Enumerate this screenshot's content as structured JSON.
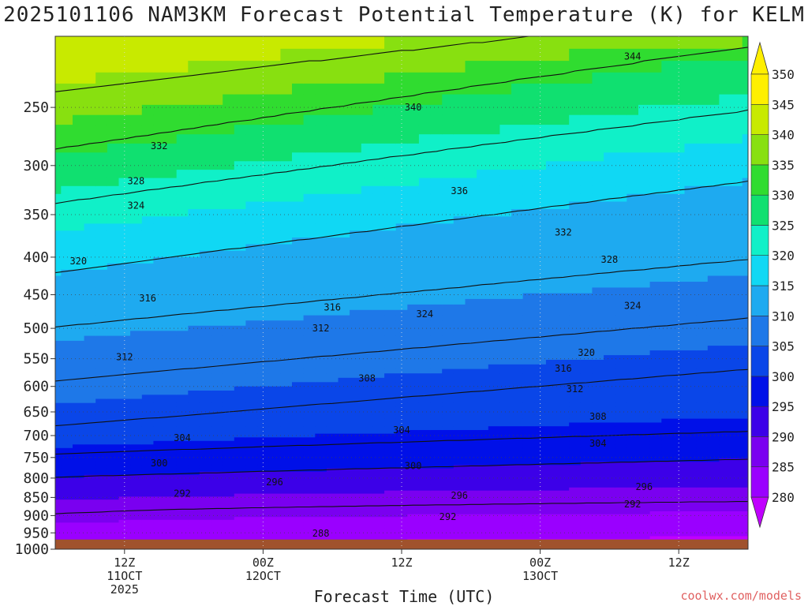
{
  "chart_data": {
    "type": "heatmap",
    "title": "2025101106 NAM3KM Forecast Potential Temperature (K) for KELM",
    "xlabel": "Forecast Time (UTC)",
    "ylabel": "",
    "credit": "coolwx.com/models",
    "y_axis": {
      "scale": "pressure-log",
      "range": [
        1000,
        200
      ],
      "ticks": [
        250,
        300,
        350,
        400,
        450,
        500,
        550,
        600,
        650,
        700,
        750,
        800,
        850,
        900,
        950,
        1000
      ]
    },
    "x_axis": {
      "range_hours": [
        0,
        60
      ],
      "ticks": [
        {
          "hour": 6,
          "lines": [
            "12Z",
            "11OCT",
            "2025"
          ]
        },
        {
          "hour": 18,
          "lines": [
            "00Z",
            "12OCT"
          ]
        },
        {
          "hour": 30,
          "lines": [
            "12Z"
          ]
        },
        {
          "hour": 42,
          "lines": [
            "00Z",
            "13OCT"
          ]
        },
        {
          "hour": 54,
          "lines": [
            "12Z"
          ]
        }
      ]
    },
    "colorbar": {
      "levels": [
        280,
        285,
        290,
        295,
        300,
        305,
        310,
        315,
        320,
        325,
        330,
        335,
        340,
        345,
        350
      ],
      "colors": [
        "#c000ff",
        "#9a00ff",
        "#7a00f0",
        "#3c00e8",
        "#0010e8",
        "#0a46e8",
        "#1e78e8",
        "#1eaaf0",
        "#10d8f4",
        "#10f0c8",
        "#10e070",
        "#30dc30",
        "#88e010",
        "#c8ea00",
        "#ffef00"
      ],
      "ground_color": "#a0522d"
    },
    "contour_labels": [
      {
        "value": 344,
        "hour": 50,
        "p": 213
      },
      {
        "value": 340,
        "hour": 31,
        "p": 250
      },
      {
        "value": 336,
        "hour": 35,
        "p": 325
      },
      {
        "value": 332,
        "hour": 9,
        "p": 282
      },
      {
        "value": 332,
        "hour": 44,
        "p": 370
      },
      {
        "value": 328,
        "hour": 7,
        "p": 315
      },
      {
        "value": 328,
        "hour": 48,
        "p": 403
      },
      {
        "value": 324,
        "hour": 7,
        "p": 340
      },
      {
        "value": 324,
        "hour": 32,
        "p": 478
      },
      {
        "value": 324,
        "hour": 50,
        "p": 466
      },
      {
        "value": 320,
        "hour": 2,
        "p": 405
      },
      {
        "value": 320,
        "hour": 46,
        "p": 540
      },
      {
        "value": 316,
        "hour": 8,
        "p": 455
      },
      {
        "value": 316,
        "hour": 24,
        "p": 468
      },
      {
        "value": 316,
        "hour": 44,
        "p": 567
      },
      {
        "value": 312,
        "hour": 23,
        "p": 500
      },
      {
        "value": 312,
        "hour": 6,
        "p": 547
      },
      {
        "value": 312,
        "hour": 45,
        "p": 605
      },
      {
        "value": 308,
        "hour": 27,
        "p": 585
      },
      {
        "value": 308,
        "hour": 47,
        "p": 660
      },
      {
        "value": 304,
        "hour": 11,
        "p": 705
      },
      {
        "value": 304,
        "hour": 30,
        "p": 688
      },
      {
        "value": 304,
        "hour": 47,
        "p": 718
      },
      {
        "value": 300,
        "hour": 9,
        "p": 763
      },
      {
        "value": 300,
        "hour": 31,
        "p": 770
      },
      {
        "value": 296,
        "hour": 19,
        "p": 810
      },
      {
        "value": 296,
        "hour": 35,
        "p": 845
      },
      {
        "value": 296,
        "hour": 51,
        "p": 822
      },
      {
        "value": 292,
        "hour": 11,
        "p": 840
      },
      {
        "value": 292,
        "hour": 34,
        "p": 903
      },
      {
        "value": 292,
        "hour": 50,
        "p": 868
      },
      {
        "value": 288,
        "hour": 23,
        "p": 952
      }
    ],
    "isentropes": [
      {
        "value": 292,
        "p": [
          895,
          893,
          892,
          891,
          890,
          888,
          887,
          886,
          885,
          884,
          883,
          882,
          882,
          881,
          880,
          880,
          879,
          878,
          878,
          877,
          877,
          876,
          876,
          875,
          875,
          874,
          874,
          873,
          873,
          872,
          872,
          871,
          871,
          870,
          870,
          870,
          869,
          869,
          868,
          868,
          868,
          867,
          867,
          866,
          866,
          866,
          865,
          865,
          865,
          864,
          864,
          864,
          863,
          863,
          863,
          862,
          862,
          862,
          862,
          861,
          861
        ]
      },
      {
        "value": 300,
        "p": [
          798,
          797,
          796,
          795,
          794,
          794,
          793,
          792,
          791,
          790,
          790,
          789,
          788,
          787,
          787,
          786,
          785,
          784,
          783,
          783,
          782,
          781,
          780,
          780,
          779,
          778,
          777,
          777,
          776,
          775,
          775,
          774,
          773,
          772,
          772,
          771,
          770,
          770,
          769,
          768,
          767,
          767,
          766,
          765,
          765,
          764,
          763,
          763,
          762,
          761,
          761,
          760,
          759,
          759,
          758,
          757,
          757,
          756,
          755,
          755,
          754
        ]
      },
      {
        "value": 304,
        "p": [
          742,
          741,
          740,
          739,
          738,
          737,
          736,
          735,
          734,
          733,
          732,
          731,
          731,
          730,
          729,
          728,
          727,
          726,
          725,
          724,
          723,
          722,
          722,
          721,
          720,
          719,
          718,
          717,
          716,
          716,
          715,
          714,
          713,
          712,
          711,
          711,
          710,
          709,
          708,
          707,
          706,
          706,
          705,
          704,
          703,
          702,
          702,
          701,
          700,
          699,
          698,
          698,
          697,
          696,
          695,
          695,
          694,
          693,
          692,
          692,
          691
        ]
      },
      {
        "value": 308,
        "p": [
          679,
          677,
          675,
          673,
          671,
          669,
          667,
          665,
          663,
          662,
          660,
          658,
          656,
          654,
          652,
          650,
          648,
          646,
          644,
          642,
          640,
          638,
          636,
          634,
          633,
          631,
          629,
          627,
          625,
          623,
          621,
          619,
          618,
          616,
          614,
          612,
          610,
          609,
          607,
          605,
          603,
          601,
          600,
          598,
          596,
          594,
          593,
          591,
          589,
          587,
          586,
          584,
          582,
          580,
          579,
          577,
          575,
          574,
          572,
          570,
          569
        ]
      },
      {
        "value": 312,
        "p": [
          590,
          588,
          586,
          584,
          582,
          580,
          578,
          576,
          574,
          572,
          570,
          568,
          567,
          565,
          563,
          561,
          559,
          557,
          555,
          554,
          552,
          550,
          548,
          546,
          545,
          543,
          541,
          539,
          538,
          536,
          534,
          532,
          531,
          529,
          527,
          525,
          524,
          522,
          520,
          519,
          517,
          515,
          514,
          512,
          510,
          509,
          507,
          505,
          504,
          502,
          500,
          499,
          497,
          496,
          494,
          492,
          491,
          489,
          488,
          486,
          484
        ]
      },
      {
        "value": 316,
        "p": [
          498,
          496,
          494,
          493,
          491,
          489,
          487,
          485,
          484,
          482,
          480,
          478,
          477,
          475,
          473,
          472,
          470,
          468,
          467,
          465,
          463,
          462,
          460,
          458,
          457,
          455,
          454,
          452,
          450,
          449,
          447,
          446,
          444,
          443,
          441,
          440,
          438,
          436,
          435,
          433,
          432,
          430,
          429,
          427,
          426,
          424,
          423,
          421,
          420,
          418,
          417,
          416,
          414,
          413,
          411,
          410,
          408,
          407,
          406,
          404,
          403
        ]
      },
      {
        "value": 320,
        "p": [
          420,
          418,
          416,
          414,
          412,
          410,
          408,
          406,
          404,
          402,
          400,
          398,
          396,
          394,
          392,
          390,
          389,
          387,
          385,
          383,
          381,
          379,
          378,
          376,
          374,
          372,
          370,
          369,
          367,
          365,
          363,
          362,
          360,
          358,
          356,
          355,
          353,
          351,
          350,
          348,
          346,
          345,
          343,
          341,
          340,
          338,
          337,
          335,
          333,
          332,
          330,
          329,
          327,
          326,
          324,
          323,
          321,
          320,
          318,
          317,
          315
        ]
      },
      {
        "value": 328,
        "p": [
          338,
          336,
          334,
          333,
          331,
          329,
          328,
          326,
          324,
          323,
          321,
          320,
          318,
          316,
          315,
          313,
          312,
          310,
          309,
          307,
          306,
          304,
          303,
          301,
          300,
          298,
          297,
          295,
          294,
          292,
          291,
          290,
          288,
          287,
          285,
          284,
          283,
          281,
          280,
          279,
          277,
          276,
          275,
          273,
          272,
          271,
          270,
          268,
          267,
          266,
          265,
          263,
          262,
          261,
          260,
          258,
          257,
          256,
          255,
          254,
          252
        ]
      },
      {
        "value": 336,
        "p": [
          285,
          283,
          282,
          280,
          279,
          277,
          276,
          274,
          273,
          271,
          270,
          268,
          267,
          265,
          264,
          262,
          261,
          260,
          258,
          257,
          255,
          254,
          253,
          251,
          250,
          249,
          247,
          246,
          245,
          243,
          242,
          241,
          239,
          238,
          237,
          236,
          234,
          233,
          232,
          231,
          229,
          228,
          227,
          226,
          225,
          223,
          222,
          221,
          220,
          219,
          218,
          216,
          215,
          214,
          213,
          212,
          211,
          210,
          209,
          208,
          207
        ]
      },
      {
        "value": 344,
        "p": [
          238,
          237,
          236,
          235,
          234,
          233,
          232,
          231,
          230,
          229,
          228,
          227,
          226,
          225,
          224,
          223,
          222,
          221,
          220,
          219,
          218,
          217,
          216,
          216,
          215,
          214,
          213,
          212,
          211,
          210,
          209,
          209,
          208,
          207,
          206,
          205,
          204,
          204,
          203,
          202,
          201,
          200,
          200,
          200,
          200,
          200,
          200,
          200,
          200,
          200,
          200,
          200,
          200,
          200,
          200,
          200,
          200,
          200,
          200,
          200,
          200
        ]
      }
    ]
  }
}
